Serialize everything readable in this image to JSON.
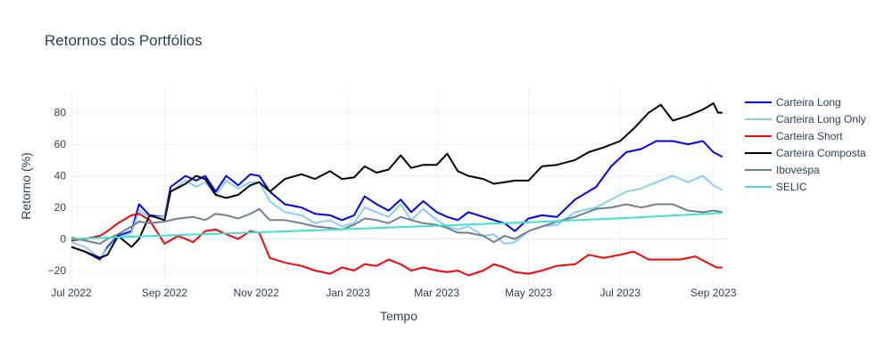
{
  "chart_data": {
    "type": "line",
    "title": "Retornos dos Portfólios",
    "xlabel": "Tempo",
    "ylabel": "Retorno (%)",
    "xlim": [
      "2022-07-01",
      "2023-09-10"
    ],
    "ylim": [
      -29,
      95
    ],
    "grid": true,
    "legend_position": "right",
    "x_ticks": [
      {
        "date": "2022-07-01",
        "label": "Jul 2022"
      },
      {
        "date": "2022-09-01",
        "label": "Sep 2022"
      },
      {
        "date": "2022-11-01",
        "label": "Nov 2022"
      },
      {
        "date": "2023-01-01",
        "label": "Jan 2023"
      },
      {
        "date": "2023-03-01",
        "label": "Mar 2023"
      },
      {
        "date": "2023-05-01",
        "label": "May 2023"
      },
      {
        "date": "2023-07-01",
        "label": "Jul 2023"
      },
      {
        "date": "2023-09-01",
        "label": "Sep 2023"
      }
    ],
    "y_ticks": [
      -20,
      0,
      20,
      40,
      60,
      80
    ],
    "series": [
      {
        "name": "Carteira Long",
        "color": "#0000ff",
        "points": [
          [
            "2022-07-01",
            -5
          ],
          [
            "2022-07-10",
            -8
          ],
          [
            "2022-07-20",
            -13
          ],
          [
            "2022-07-25",
            -5
          ],
          [
            "2022-08-01",
            2
          ],
          [
            "2022-08-10",
            5
          ],
          [
            "2022-08-15",
            22
          ],
          [
            "2022-08-22",
            15
          ],
          [
            "2022-09-01",
            14
          ],
          [
            "2022-09-05",
            33
          ],
          [
            "2022-09-15",
            40
          ],
          [
            "2022-09-22",
            37
          ],
          [
            "2022-09-28",
            40
          ],
          [
            "2022-10-05",
            30
          ],
          [
            "2022-10-12",
            40
          ],
          [
            "2022-10-20",
            34
          ],
          [
            "2022-10-28",
            41
          ],
          [
            "2022-11-03",
            40
          ],
          [
            "2022-11-10",
            30
          ],
          [
            "2022-11-20",
            22
          ],
          [
            "2022-12-01",
            20
          ],
          [
            "2022-12-10",
            16
          ],
          [
            "2022-12-20",
            15
          ],
          [
            "2022-12-28",
            12
          ],
          [
            "2023-01-05",
            15
          ],
          [
            "2023-01-12",
            27
          ],
          [
            "2023-01-20",
            22
          ],
          [
            "2023-01-28",
            18
          ],
          [
            "2023-02-05",
            25
          ],
          [
            "2023-02-12",
            17
          ],
          [
            "2023-02-20",
            24
          ],
          [
            "2023-03-01",
            17
          ],
          [
            "2023-03-08",
            14
          ],
          [
            "2023-03-15",
            12
          ],
          [
            "2023-03-22",
            17
          ],
          [
            "2023-04-01",
            14
          ],
          [
            "2023-04-08",
            12
          ],
          [
            "2023-04-15",
            10
          ],
          [
            "2023-04-22",
            5
          ],
          [
            "2023-05-01",
            13
          ],
          [
            "2023-05-10",
            15
          ],
          [
            "2023-05-20",
            14
          ],
          [
            "2023-06-01",
            25
          ],
          [
            "2023-06-15",
            33
          ],
          [
            "2023-06-25",
            46
          ],
          [
            "2023-07-05",
            55
          ],
          [
            "2023-07-15",
            57
          ],
          [
            "2023-07-25",
            62
          ],
          [
            "2023-08-05",
            62
          ],
          [
            "2023-08-15",
            60
          ],
          [
            "2023-08-25",
            62
          ],
          [
            "2023-09-01",
            55
          ],
          [
            "2023-09-07",
            52
          ]
        ]
      },
      {
        "name": "Carteira Long Only",
        "color": "#87cefa",
        "points": [
          [
            "2022-07-01",
            -2
          ],
          [
            "2022-07-10",
            -5
          ],
          [
            "2022-07-20",
            -12
          ],
          [
            "2022-07-25",
            -6
          ],
          [
            "2022-08-01",
            1
          ],
          [
            "2022-08-10",
            4
          ],
          [
            "2022-08-15",
            18
          ],
          [
            "2022-08-22",
            14
          ],
          [
            "2022-09-01",
            14
          ],
          [
            "2022-09-05",
            30
          ],
          [
            "2022-09-15",
            37
          ],
          [
            "2022-09-22",
            33
          ],
          [
            "2022-09-28",
            36
          ],
          [
            "2022-10-05",
            28
          ],
          [
            "2022-10-12",
            37
          ],
          [
            "2022-10-20",
            32
          ],
          [
            "2022-10-28",
            36
          ],
          [
            "2022-11-03",
            36
          ],
          [
            "2022-11-10",
            24
          ],
          [
            "2022-11-20",
            17
          ],
          [
            "2022-12-01",
            15
          ],
          [
            "2022-12-10",
            10
          ],
          [
            "2022-12-20",
            12
          ],
          [
            "2022-12-28",
            8
          ],
          [
            "2023-01-05",
            10
          ],
          [
            "2023-01-12",
            20
          ],
          [
            "2023-01-20",
            17
          ],
          [
            "2023-01-28",
            14
          ],
          [
            "2023-02-05",
            22
          ],
          [
            "2023-02-12",
            12
          ],
          [
            "2023-02-20",
            19
          ],
          [
            "2023-03-01",
            12
          ],
          [
            "2023-03-08",
            8
          ],
          [
            "2023-03-15",
            6
          ],
          [
            "2023-03-22",
            8
          ],
          [
            "2023-04-01",
            2
          ],
          [
            "2023-04-08",
            3
          ],
          [
            "2023-04-15",
            -3
          ],
          [
            "2023-04-22",
            -2
          ],
          [
            "2023-05-01",
            5
          ],
          [
            "2023-05-10",
            8
          ],
          [
            "2023-05-20",
            9
          ],
          [
            "2023-06-01",
            17
          ],
          [
            "2023-06-15",
            20
          ],
          [
            "2023-06-25",
            25
          ],
          [
            "2023-07-05",
            30
          ],
          [
            "2023-07-15",
            32
          ],
          [
            "2023-07-25",
            36
          ],
          [
            "2023-08-05",
            40
          ],
          [
            "2023-08-15",
            36
          ],
          [
            "2023-08-25",
            40
          ],
          [
            "2023-09-01",
            34
          ],
          [
            "2023-09-07",
            31
          ]
        ]
      },
      {
        "name": "Carteira Short",
        "color": "#ff0000",
        "points": [
          [
            "2022-07-01",
            -1
          ],
          [
            "2022-07-10",
            0
          ],
          [
            "2022-07-20",
            2
          ],
          [
            "2022-07-25",
            5
          ],
          [
            "2022-08-01",
            10
          ],
          [
            "2022-08-10",
            15
          ],
          [
            "2022-08-15",
            16
          ],
          [
            "2022-08-22",
            12
          ],
          [
            "2022-09-01",
            -3
          ],
          [
            "2022-09-10",
            2
          ],
          [
            "2022-09-20",
            -2
          ],
          [
            "2022-09-28",
            5
          ],
          [
            "2022-10-05",
            6
          ],
          [
            "2022-10-12",
            3
          ],
          [
            "2022-10-20",
            0
          ],
          [
            "2022-10-28",
            5
          ],
          [
            "2022-11-03",
            4
          ],
          [
            "2022-11-10",
            -12
          ],
          [
            "2022-11-20",
            -15
          ],
          [
            "2022-12-01",
            -17
          ],
          [
            "2022-12-10",
            -20
          ],
          [
            "2022-12-20",
            -22
          ],
          [
            "2022-12-28",
            -18
          ],
          [
            "2023-01-05",
            -20
          ],
          [
            "2023-01-12",
            -16
          ],
          [
            "2023-01-20",
            -17
          ],
          [
            "2023-01-28",
            -13
          ],
          [
            "2023-02-05",
            -16
          ],
          [
            "2023-02-12",
            -20
          ],
          [
            "2023-02-20",
            -18
          ],
          [
            "2023-03-01",
            -20
          ],
          [
            "2023-03-08",
            -21
          ],
          [
            "2023-03-15",
            -20
          ],
          [
            "2023-03-22",
            -23
          ],
          [
            "2023-04-01",
            -20
          ],
          [
            "2023-04-08",
            -16
          ],
          [
            "2023-04-15",
            -18
          ],
          [
            "2023-04-22",
            -21
          ],
          [
            "2023-05-01",
            -22
          ],
          [
            "2023-05-10",
            -20
          ],
          [
            "2023-05-20",
            -17
          ],
          [
            "2023-06-01",
            -16
          ],
          [
            "2023-06-10",
            -10
          ],
          [
            "2023-06-20",
            -12
          ],
          [
            "2023-07-01",
            -10
          ],
          [
            "2023-07-10",
            -8
          ],
          [
            "2023-07-20",
            -13
          ],
          [
            "2023-08-01",
            -13
          ],
          [
            "2023-08-10",
            -13
          ],
          [
            "2023-08-20",
            -11
          ],
          [
            "2023-08-28",
            -15
          ],
          [
            "2023-09-03",
            -18
          ],
          [
            "2023-09-07",
            -18
          ]
        ]
      },
      {
        "name": "Carteira Composta",
        "color": "#000000",
        "points": [
          [
            "2022-07-01",
            -5
          ],
          [
            "2022-07-10",
            -8
          ],
          [
            "2022-07-20",
            -12
          ],
          [
            "2022-07-25",
            -10
          ],
          [
            "2022-08-01",
            2
          ],
          [
            "2022-08-10",
            -5
          ],
          [
            "2022-08-15",
            0
          ],
          [
            "2022-08-22",
            15
          ],
          [
            "2022-09-01",
            12
          ],
          [
            "2022-09-05",
            30
          ],
          [
            "2022-09-15",
            35
          ],
          [
            "2022-09-22",
            40
          ],
          [
            "2022-09-28",
            38
          ],
          [
            "2022-10-05",
            28
          ],
          [
            "2022-10-12",
            26
          ],
          [
            "2022-10-20",
            28
          ],
          [
            "2022-10-28",
            34
          ],
          [
            "2022-11-03",
            36
          ],
          [
            "2022-11-10",
            30
          ],
          [
            "2022-11-20",
            38
          ],
          [
            "2022-12-01",
            41
          ],
          [
            "2022-12-10",
            38
          ],
          [
            "2022-12-20",
            43
          ],
          [
            "2022-12-28",
            38
          ],
          [
            "2023-01-05",
            39
          ],
          [
            "2023-01-12",
            46
          ],
          [
            "2023-01-20",
            42
          ],
          [
            "2023-01-28",
            44
          ],
          [
            "2023-02-05",
            53
          ],
          [
            "2023-02-12",
            45
          ],
          [
            "2023-02-20",
            47
          ],
          [
            "2023-03-01",
            47
          ],
          [
            "2023-03-08",
            54
          ],
          [
            "2023-03-15",
            43
          ],
          [
            "2023-03-22",
            40
          ],
          [
            "2023-04-01",
            38
          ],
          [
            "2023-04-08",
            35
          ],
          [
            "2023-04-15",
            36
          ],
          [
            "2023-04-22",
            37
          ],
          [
            "2023-05-01",
            37
          ],
          [
            "2023-05-10",
            46
          ],
          [
            "2023-05-20",
            47
          ],
          [
            "2023-06-01",
            50
          ],
          [
            "2023-06-10",
            55
          ],
          [
            "2023-06-20",
            58
          ],
          [
            "2023-07-01",
            62
          ],
          [
            "2023-07-10",
            70
          ],
          [
            "2023-07-20",
            80
          ],
          [
            "2023-07-28",
            85
          ],
          [
            "2023-08-05",
            75
          ],
          [
            "2023-08-15",
            78
          ],
          [
            "2023-08-25",
            82
          ],
          [
            "2023-09-01",
            86
          ],
          [
            "2023-09-04",
            80
          ],
          [
            "2023-09-07",
            80
          ]
        ]
      },
      {
        "name": "Ibovespa",
        "color": "#708090",
        "points": [
          [
            "2022-07-01",
            1
          ],
          [
            "2022-07-10",
            -1
          ],
          [
            "2022-07-20",
            -3
          ],
          [
            "2022-07-25",
            0
          ],
          [
            "2022-08-01",
            3
          ],
          [
            "2022-08-10",
            8
          ],
          [
            "2022-08-15",
            11
          ],
          [
            "2022-08-22",
            10
          ],
          [
            "2022-09-01",
            11
          ],
          [
            "2022-09-10",
            13
          ],
          [
            "2022-09-20",
            14
          ],
          [
            "2022-09-28",
            12
          ],
          [
            "2022-10-05",
            16
          ],
          [
            "2022-10-12",
            15
          ],
          [
            "2022-10-20",
            13
          ],
          [
            "2022-10-28",
            16
          ],
          [
            "2022-11-03",
            19
          ],
          [
            "2022-11-10",
            12
          ],
          [
            "2022-11-20",
            12
          ],
          [
            "2022-12-01",
            10
          ],
          [
            "2022-12-10",
            8
          ],
          [
            "2022-12-20",
            7
          ],
          [
            "2022-12-28",
            6
          ],
          [
            "2023-01-05",
            9
          ],
          [
            "2023-01-12",
            13
          ],
          [
            "2023-01-20",
            12
          ],
          [
            "2023-01-28",
            10
          ],
          [
            "2023-02-05",
            14
          ],
          [
            "2023-02-12",
            12
          ],
          [
            "2023-02-20",
            10
          ],
          [
            "2023-03-01",
            9
          ],
          [
            "2023-03-08",
            7
          ],
          [
            "2023-03-15",
            4
          ],
          [
            "2023-03-22",
            4
          ],
          [
            "2023-04-01",
            2
          ],
          [
            "2023-04-08",
            -2
          ],
          [
            "2023-04-15",
            2
          ],
          [
            "2023-04-22",
            0
          ],
          [
            "2023-05-01",
            5
          ],
          [
            "2023-05-10",
            8
          ],
          [
            "2023-05-20",
            11
          ],
          [
            "2023-06-01",
            14
          ],
          [
            "2023-06-15",
            19
          ],
          [
            "2023-06-25",
            20
          ],
          [
            "2023-07-05",
            22
          ],
          [
            "2023-07-15",
            20
          ],
          [
            "2023-07-25",
            22
          ],
          [
            "2023-08-05",
            22
          ],
          [
            "2023-08-15",
            18
          ],
          [
            "2023-08-25",
            17
          ],
          [
            "2023-09-01",
            18
          ],
          [
            "2023-09-07",
            17
          ]
        ]
      },
      {
        "name": "SELIC",
        "color": "#40e0d0",
        "points": [
          [
            "2022-07-01",
            0
          ],
          [
            "2022-09-01",
            2.2
          ],
          [
            "2022-11-01",
            4.2
          ],
          [
            "2023-01-01",
            6.3
          ],
          [
            "2023-03-01",
            8.4
          ],
          [
            "2023-05-01",
            10.6
          ],
          [
            "2023-07-01",
            13.1
          ],
          [
            "2023-09-07",
            16.5
          ]
        ]
      }
    ]
  }
}
